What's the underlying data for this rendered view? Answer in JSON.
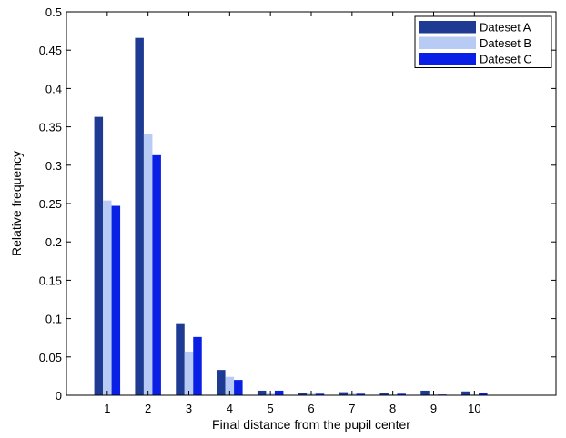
{
  "chart_data": {
    "type": "bar",
    "title": "",
    "xlabel": "Final distance from the pupil center",
    "ylabel": "Relative frequency",
    "categories": [
      "1",
      "2",
      "3",
      "4",
      "5",
      "6",
      "7",
      "8",
      "9",
      "10"
    ],
    "xlim": [
      0,
      12
    ],
    "ylim": [
      0,
      0.5
    ],
    "yticks": [
      0,
      0.05,
      0.1,
      0.15,
      0.2,
      0.25,
      0.3,
      0.35,
      0.4,
      0.45,
      0.5
    ],
    "ytick_labels": [
      "0",
      "0.05",
      "0.1",
      "0.15",
      "0.2",
      "0.25",
      "0.3",
      "0.35",
      "0.4",
      "0.45",
      "0.5"
    ],
    "grid": false,
    "legend_position": "top-right",
    "series": [
      {
        "name": "Dateset A",
        "color": "#1f3a93",
        "values": [
          0.363,
          0.466,
          0.094,
          0.033,
          0.006,
          0.003,
          0.004,
          0.003,
          0.006,
          0.005
        ]
      },
      {
        "name": "Dateset B",
        "color": "#b7cbf5",
        "values": [
          0.254,
          0.341,
          0.057,
          0.024,
          0.002,
          0.002,
          0.002,
          0.001,
          0.001,
          0.001
        ]
      },
      {
        "name": "Dateset C",
        "color": "#0a1fe6",
        "values": [
          0.247,
          0.313,
          0.076,
          0.02,
          0.006,
          0.002,
          0.002,
          0.002,
          0.001,
          0.003
        ]
      }
    ]
  }
}
